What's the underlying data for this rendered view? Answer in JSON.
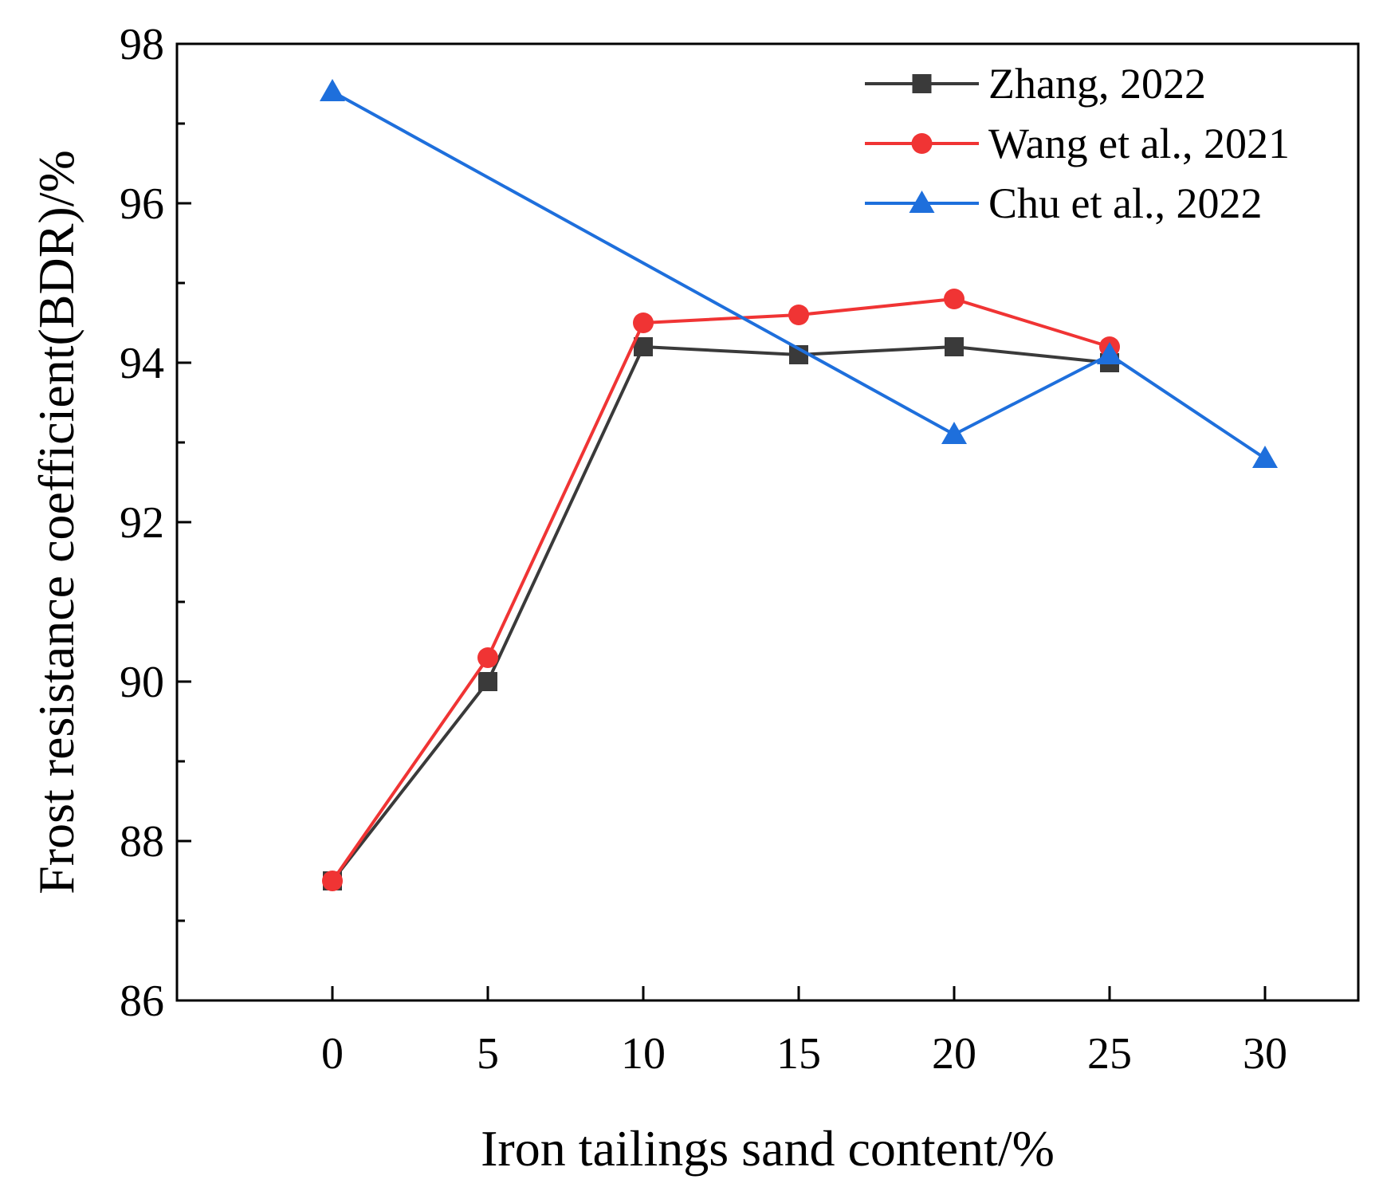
{
  "chart_data": {
    "type": "line",
    "title": "",
    "xlabel": "Iron tailings sand content/%",
    "ylabel": "Frost resistance coefficient(BDR)/%",
    "xlim": [
      -5,
      33
    ],
    "ylim": [
      86,
      98
    ],
    "x_ticks": [
      0,
      5,
      10,
      15,
      20,
      25,
      30
    ],
    "x_tick_labels": [
      "0",
      "5",
      "10",
      "15",
      "20",
      "25",
      "30"
    ],
    "y_ticks": [
      86,
      88,
      90,
      92,
      94,
      96,
      98
    ],
    "y_tick_labels": [
      "86",
      "88",
      "90",
      "92",
      "94",
      "96",
      "98"
    ],
    "y_minor_ticks": [
      87,
      89,
      91,
      93,
      95,
      97
    ],
    "legend_position": "top-right",
    "series": [
      {
        "name": "Zhang, 2022",
        "color": "#3a3a3a",
        "marker": "square",
        "x": [
          0,
          5,
          10,
          15,
          20,
          25
        ],
        "y": [
          87.5,
          90.0,
          94.2,
          94.1,
          94.2,
          94.0
        ]
      },
      {
        "name": "Wang et al., 2021",
        "color": "#f03434",
        "marker": "circle",
        "x": [
          0,
          5,
          10,
          15,
          20,
          25
        ],
        "y": [
          87.5,
          90.3,
          94.5,
          94.6,
          94.8,
          94.2
        ]
      },
      {
        "name": "Chu et al., 2022",
        "color": "#1e6fdc",
        "marker": "triangle",
        "x": [
          0,
          20,
          25,
          30
        ],
        "y": [
          97.4,
          93.1,
          94.1,
          92.8
        ]
      }
    ]
  }
}
